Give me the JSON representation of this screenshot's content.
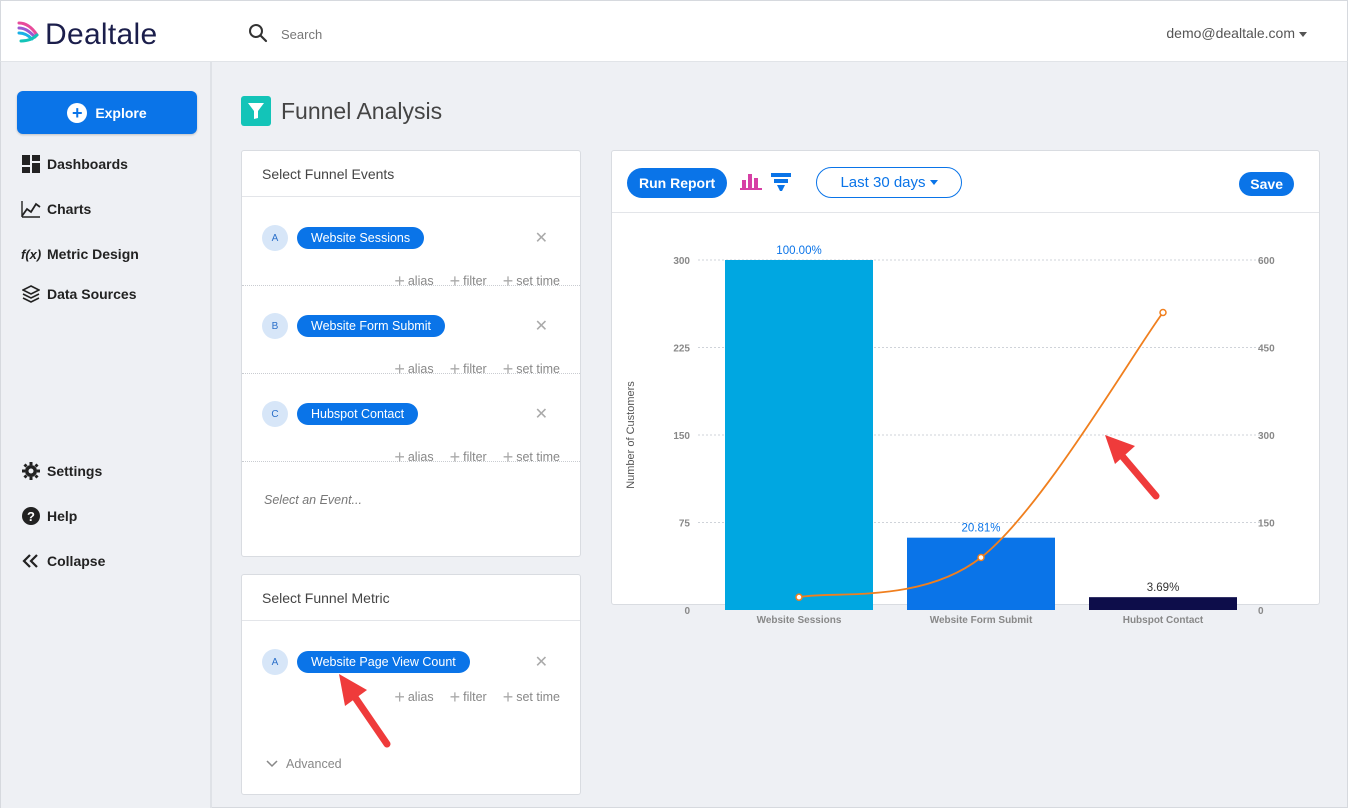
{
  "header": {
    "logo_text": "Dealtale",
    "search_placeholder": "Search",
    "user_email": "demo@dealtale.com"
  },
  "sidebar": {
    "explore_label": "Explore",
    "items": [
      {
        "label": "Dashboards",
        "icon": "dashboard-icon"
      },
      {
        "label": "Charts",
        "icon": "chart-line-icon"
      },
      {
        "label": "Metric Design",
        "icon": "function-icon"
      },
      {
        "label": "Data Sources",
        "icon": "layers-icon"
      },
      {
        "label": "Settings",
        "icon": "gear-icon"
      },
      {
        "label": "Help",
        "icon": "help-icon"
      },
      {
        "label": "Collapse",
        "icon": "collapse-icon"
      }
    ]
  },
  "page": {
    "title": "Funnel Analysis"
  },
  "funnel_events": {
    "header": "Select Funnel Events",
    "events": [
      {
        "letter": "A",
        "name": "Website Sessions"
      },
      {
        "letter": "B",
        "name": "Website Form Submit"
      },
      {
        "letter": "C",
        "name": "Hubspot Contact"
      }
    ],
    "actions": {
      "alias": "alias",
      "filter": "filter",
      "set_time": "set time"
    },
    "select_placeholder": "Select an Event..."
  },
  "funnel_metric": {
    "header": "Select Funnel Metric",
    "metric": {
      "letter": "A",
      "name": "Website Page View Count"
    },
    "advanced_label": "Advanced"
  },
  "chart_panel": {
    "run_report_label": "Run Report",
    "date_range": "Last 30 days",
    "save_label": "Save"
  },
  "colors": {
    "primary": "#0a74e8",
    "bar_1": "#00a7e1",
    "bar_2": "#0a74e8",
    "bar_3": "#0d0d4a",
    "line": "#f07f1e",
    "teal": "#13c4b8"
  },
  "chart_data": {
    "type": "bar",
    "categories": [
      "Website Sessions",
      "Website Form Submit",
      "Hubspot Contact"
    ],
    "series": [
      {
        "type": "bar",
        "axis": "left",
        "values": [
          300,
          62,
          11
        ]
      },
      {
        "type": "line",
        "axis": "right",
        "values": [
          22,
          90,
          510
        ]
      }
    ],
    "bar_labels": [
      "100.00%",
      "20.81%",
      "3.69%"
    ],
    "ylabel": "Number of Customers",
    "ylim": [
      0,
      300
    ],
    "y_ticks": [
      "0",
      "75",
      "150",
      "225",
      "300"
    ],
    "y2lim": [
      0,
      600
    ],
    "y2_ticks": [
      "0",
      "150",
      "300",
      "450",
      "600"
    ],
    "grid": true
  }
}
